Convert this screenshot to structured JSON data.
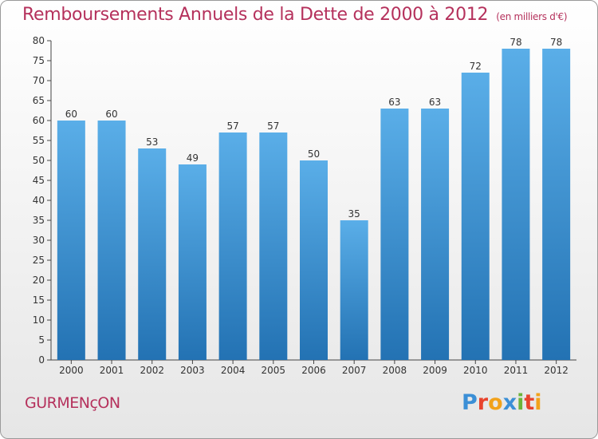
{
  "header": {
    "title": "Remboursements Annuels de la Dette de 2000 à 2012",
    "unit": "(en milliers d'€)"
  },
  "footer": {
    "commune": "GURMENçON",
    "brand": "Proxiti"
  },
  "colors": {
    "title": "#b5315c",
    "bar_light": "#5aaee8",
    "bar_dark": "#2372b3"
  },
  "chart_data": {
    "type": "bar",
    "title": "Remboursements Annuels de la Dette de 2000 à 2012",
    "xlabel": "",
    "ylabel": "(en milliers d'€)",
    "categories": [
      "2000",
      "2001",
      "2002",
      "2003",
      "2004",
      "2005",
      "2006",
      "2007",
      "2008",
      "2009",
      "2010",
      "2011",
      "2012"
    ],
    "values": [
      60,
      60,
      53,
      49,
      57,
      57,
      50,
      35,
      63,
      63,
      72,
      78,
      78
    ],
    "ylim": [
      0,
      80
    ],
    "yticks": [
      0,
      5,
      10,
      15,
      20,
      25,
      30,
      35,
      40,
      45,
      50,
      55,
      60,
      65,
      70,
      75,
      80
    ],
    "grid": false,
    "legend": "none"
  }
}
